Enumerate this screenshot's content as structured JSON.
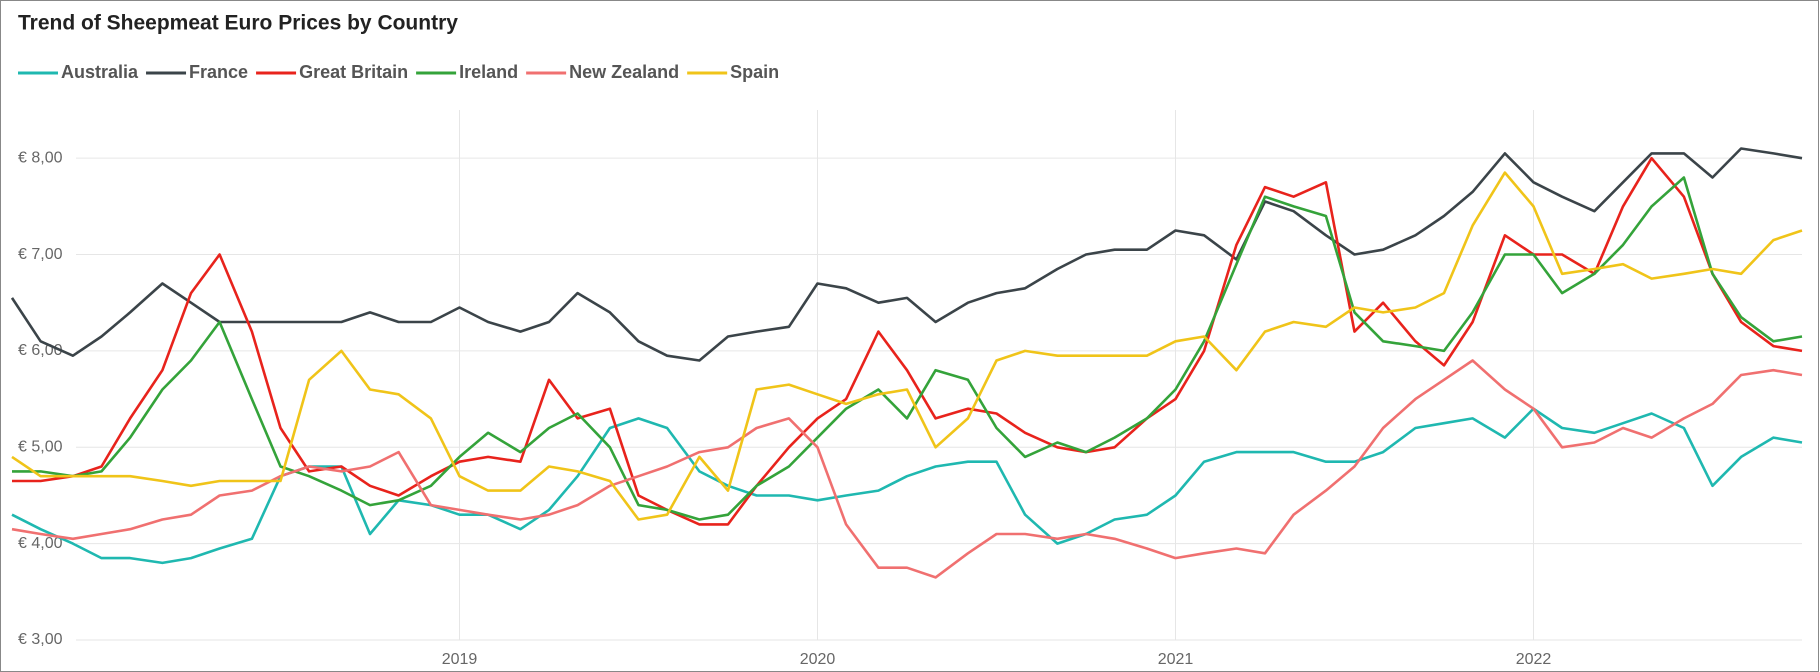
{
  "chart_data": {
    "type": "line",
    "title": "Trend of Sheepmeat Euro Prices by Country",
    "x": [
      2017.75,
      2017.83,
      2017.92,
      2018,
      2018.08,
      2018.17,
      2018.25,
      2018.33,
      2018.42,
      2018.5,
      2018.58,
      2018.67,
      2018.75,
      2018.83,
      2018.92,
      2019,
      2019.08,
      2019.17,
      2019.25,
      2019.33,
      2019.42,
      2019.5,
      2019.58,
      2019.67,
      2019.75,
      2019.83,
      2019.92,
      2020,
      2020.08,
      2020.17,
      2020.25,
      2020.33,
      2020.42,
      2020.5,
      2020.58,
      2020.67,
      2020.75,
      2020.83,
      2020.92,
      2021,
      2021.08,
      2021.17,
      2021.25,
      2021.33,
      2021.42,
      2021.5,
      2021.58,
      2021.67,
      2021.75,
      2021.83,
      2021.92,
      2022,
      2022.08,
      2022.17,
      2022.25,
      2022.33,
      2022.42,
      2022.5,
      2022.58,
      2022.67,
      2022.75
    ],
    "series": [
      {
        "name": "Australia",
        "color": "#1fb8b0",
        "values": [
          4.3,
          4.15,
          4.0,
          3.85,
          3.85,
          3.8,
          3.85,
          3.95,
          4.05,
          4.7,
          4.8,
          4.8,
          4.1,
          4.45,
          4.4,
          4.3,
          4.3,
          4.15,
          4.35,
          4.7,
          5.2,
          5.3,
          5.2,
          4.75,
          4.6,
          4.5,
          4.5,
          4.45,
          4.5,
          4.55,
          4.7,
          4.8,
          4.85,
          4.85,
          4.3,
          4.0,
          4.1,
          4.25,
          4.3,
          4.5,
          4.85,
          4.95,
          4.95,
          4.95,
          4.85,
          4.85,
          4.95,
          5.2,
          5.25,
          5.3,
          5.1,
          5.4,
          5.2,
          5.15,
          5.25,
          5.35,
          5.2,
          4.6,
          4.9,
          5.1,
          5.05
        ]
      },
      {
        "name": "France",
        "color": "#3b4449",
        "values": [
          6.55,
          6.1,
          5.95,
          6.15,
          6.4,
          6.7,
          6.5,
          6.3,
          6.3,
          6.3,
          6.3,
          6.3,
          6.4,
          6.3,
          6.3,
          6.45,
          6.3,
          6.2,
          6.3,
          6.6,
          6.4,
          6.1,
          5.95,
          5.9,
          6.15,
          6.2,
          6.25,
          6.7,
          6.65,
          6.5,
          6.55,
          6.3,
          6.5,
          6.6,
          6.65,
          6.85,
          7.0,
          7.05,
          7.05,
          7.25,
          7.2,
          6.95,
          7.55,
          7.45,
          7.2,
          7.0,
          7.05,
          7.2,
          7.4,
          7.65,
          8.05,
          7.75,
          7.6,
          7.45,
          7.75,
          8.05,
          8.05,
          7.8,
          8.1,
          8.05,
          8.0
        ]
      },
      {
        "name": "Great Britain",
        "color": "#e8231c",
        "values": [
          4.65,
          4.65,
          4.7,
          4.8,
          5.3,
          5.8,
          6.6,
          7.0,
          6.2,
          5.2,
          4.75,
          4.8,
          4.6,
          4.5,
          4.7,
          4.85,
          4.9,
          4.85,
          5.7,
          5.3,
          5.4,
          4.5,
          4.35,
          4.2,
          4.2,
          4.6,
          5.0,
          5.3,
          5.5,
          6.2,
          5.8,
          5.3,
          5.4,
          5.35,
          5.15,
          5.0,
          4.95,
          5.0,
          5.3,
          5.5,
          6.0,
          7.1,
          7.7,
          7.6,
          7.75,
          6.2,
          6.5,
          6.1,
          5.85,
          6.3,
          7.2,
          7.0,
          7.0,
          6.8,
          7.5,
          8.0,
          7.6,
          6.8,
          6.3,
          6.05,
          6.0
        ]
      },
      {
        "name": "Ireland",
        "color": "#34a33a",
        "values": [
          4.75,
          4.75,
          4.7,
          4.75,
          5.1,
          5.6,
          5.9,
          6.3,
          5.5,
          4.8,
          4.7,
          4.55,
          4.4,
          4.45,
          4.6,
          4.9,
          5.15,
          4.95,
          5.2,
          5.35,
          5.0,
          4.4,
          4.35,
          4.25,
          4.3,
          4.6,
          4.8,
          5.1,
          5.4,
          5.6,
          5.3,
          5.8,
          5.7,
          5.2,
          4.9,
          5.05,
          4.95,
          5.1,
          5.3,
          5.6,
          6.1,
          6.9,
          7.6,
          7.5,
          7.4,
          6.4,
          6.1,
          6.05,
          6.0,
          6.4,
          7.0,
          7.0,
          6.6,
          6.8,
          7.1,
          7.5,
          7.8,
          6.8,
          6.35,
          6.1,
          6.15
        ]
      },
      {
        "name": "New Zealand",
        "color": "#f07070",
        "values": [
          4.15,
          4.1,
          4.05,
          4.1,
          4.15,
          4.25,
          4.3,
          4.5,
          4.55,
          4.7,
          4.8,
          4.75,
          4.8,
          4.95,
          4.4,
          4.35,
          4.3,
          4.25,
          4.3,
          4.4,
          4.6,
          4.7,
          4.8,
          4.95,
          5.0,
          5.2,
          5.3,
          5.0,
          4.2,
          3.75,
          3.75,
          3.65,
          3.9,
          4.1,
          4.1,
          4.05,
          4.1,
          4.05,
          3.95,
          3.85,
          3.9,
          3.95,
          3.9,
          4.3,
          4.55,
          4.8,
          5.2,
          5.5,
          5.7,
          5.9,
          5.6,
          5.4,
          5.0,
          5.05,
          5.2,
          5.1,
          5.3,
          5.45,
          5.75,
          5.8,
          5.75
        ]
      },
      {
        "name": "Spain",
        "color": "#f0c419",
        "values": [
          4.9,
          4.7,
          4.7,
          4.7,
          4.7,
          4.65,
          4.6,
          4.65,
          4.65,
          4.65,
          5.7,
          6.0,
          5.6,
          5.55,
          5.3,
          4.7,
          4.55,
          4.55,
          4.8,
          4.75,
          4.65,
          4.25,
          4.3,
          4.9,
          4.55,
          5.6,
          5.65,
          5.55,
          5.45,
          5.55,
          5.6,
          5.0,
          5.3,
          5.9,
          6.0,
          5.95,
          5.95,
          5.95,
          5.95,
          6.1,
          6.15,
          5.8,
          6.2,
          6.3,
          6.25,
          6.45,
          6.4,
          6.45,
          6.6,
          7.3,
          7.85,
          7.5,
          6.8,
          6.85,
          6.9,
          6.75,
          6.8,
          6.85,
          6.8,
          7.15,
          7.25
        ]
      }
    ],
    "xlim": [
      2017.75,
      2022.75
    ],
    "xticks": [
      2019,
      2020,
      2021,
      2022
    ],
    "ylim": [
      3,
      8.5
    ],
    "yticks": [
      {
        "value": 3,
        "label": "€ 3,00"
      },
      {
        "value": 4,
        "label": "€ 4,00"
      },
      {
        "value": 5,
        "label": "€ 5,00"
      },
      {
        "value": 6,
        "label": "€ 6,00"
      },
      {
        "value": 7,
        "label": "€ 7,00"
      },
      {
        "value": 8,
        "label": "€ 8,00"
      }
    ],
    "grid": true,
    "legend": "top-left"
  }
}
